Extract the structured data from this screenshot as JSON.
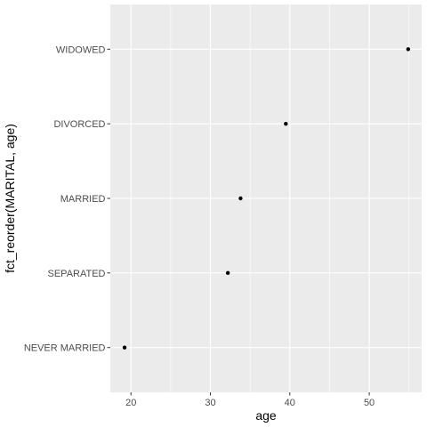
{
  "chart_data": {
    "type": "scatter",
    "xlabel": "age",
    "ylabel": "fct_reorder(MARITAL, age)",
    "xlim": [
      17.4,
      56.6
    ],
    "x_ticks": [
      20,
      30,
      40,
      50
    ],
    "categories": [
      "NEVER MARRIED",
      "SEPARATED",
      "MARRIED",
      "DIVORCED",
      "WIDOWED"
    ],
    "points": [
      {
        "category": "NEVER MARRIED",
        "x": 19.2
      },
      {
        "category": "SEPARATED",
        "x": 32.2
      },
      {
        "category": "MARRIED",
        "x": 33.8
      },
      {
        "category": "DIVORCED",
        "x": 39.5
      },
      {
        "category": "WIDOWED",
        "x": 54.9
      }
    ],
    "panel_background": "#ebebeb",
    "grid_color": "#ffffff",
    "point_color": "#000000",
    "grid": true
  }
}
